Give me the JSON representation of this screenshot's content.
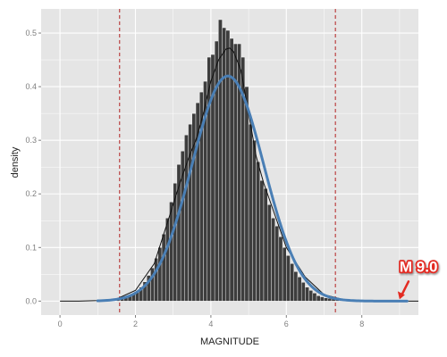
{
  "chart_data": {
    "type": "bar",
    "title": "",
    "xlabel": "MAGNITUDE",
    "ylabel": "density",
    "xlim": [
      -0.5,
      9.5
    ],
    "ylim": [
      -0.026,
      0.545
    ],
    "x_ticks": [
      0,
      2,
      4,
      6,
      8
    ],
    "y_ticks": [
      0.0,
      0.1,
      0.2,
      0.3,
      0.4,
      0.5
    ],
    "x_tick_labels": [
      "0",
      "2",
      "4",
      "6",
      "8"
    ],
    "y_tick_labels": [
      "0.0",
      "0.1",
      "0.2",
      "0.3",
      "0.4",
      "0.5"
    ],
    "grid": true,
    "legend": "none",
    "histogram": {
      "bin_width": 0.1,
      "bin_starts": [
        1.5,
        1.6,
        1.7,
        1.8,
        1.9,
        2.0,
        2.1,
        2.2,
        2.3,
        2.4,
        2.5,
        2.6,
        2.7,
        2.8,
        2.9,
        3.0,
        3.1,
        3.2,
        3.3,
        3.4,
        3.5,
        3.6,
        3.7,
        3.8,
        3.9,
        4.0,
        4.1,
        4.2,
        4.3,
        4.4,
        4.5,
        4.6,
        4.7,
        4.8,
        4.9,
        5.0,
        5.1,
        5.2,
        5.3,
        5.4,
        5.5,
        5.6,
        5.7,
        5.8,
        5.9,
        6.0,
        6.1,
        6.2,
        6.3,
        6.4,
        6.5,
        6.6,
        6.7,
        6.8,
        6.9,
        7.0,
        7.1,
        7.2,
        7.3,
        7.4,
        7.5,
        7.6,
        7.7,
        7.8,
        7.9,
        8.0,
        8.1,
        8.2,
        8.3
      ],
      "densities": [
        0.002,
        0.004,
        0.006,
        0.01,
        0.014,
        0.018,
        0.026,
        0.036,
        0.048,
        0.062,
        0.08,
        0.1,
        0.125,
        0.155,
        0.185,
        0.22,
        0.255,
        0.28,
        0.31,
        0.33,
        0.35,
        0.37,
        0.39,
        0.41,
        0.455,
        0.46,
        0.485,
        0.525,
        0.51,
        0.505,
        0.49,
        0.48,
        0.48,
        0.455,
        0.4,
        0.33,
        0.3,
        0.26,
        0.225,
        0.21,
        0.18,
        0.155,
        0.14,
        0.12,
        0.1,
        0.085,
        0.07,
        0.055,
        0.045,
        0.035,
        0.026,
        0.02,
        0.015,
        0.01,
        0.008,
        0.006,
        0.005,
        0.004,
        0.003,
        0.002,
        0.002,
        0.001,
        0.001,
        0.001,
        0.001,
        0.001,
        0.0005,
        0.0005,
        0.0005
      ],
      "color": "#3d3d3d",
      "edge_color": "#ffffff"
    },
    "kernel_density": {
      "x": [
        0.0,
        0.5,
        1.0,
        1.5,
        2.0,
        2.5,
        3.0,
        3.2,
        3.4,
        3.6,
        3.8,
        4.0,
        4.2,
        4.4,
        4.5,
        4.6,
        4.8,
        5.0,
        5.2,
        5.4,
        5.6,
        5.8,
        6.0,
        6.5,
        7.0,
        7.5,
        8.0,
        8.5,
        9.0,
        9.5
      ],
      "y": [
        0.0,
        0.0,
        0.001,
        0.004,
        0.02,
        0.07,
        0.18,
        0.225,
        0.265,
        0.3,
        0.35,
        0.41,
        0.45,
        0.47,
        0.472,
        0.465,
        0.43,
        0.35,
        0.27,
        0.22,
        0.18,
        0.14,
        0.1,
        0.045,
        0.012,
        0.003,
        0.001,
        0.0,
        0.0,
        0.0
      ],
      "color": "#111111"
    },
    "normal_fit": {
      "mean": 4.45,
      "sd": 0.95,
      "x_range": [
        1.0,
        9.2
      ],
      "color": "#4a7fb5"
    },
    "vlines": {
      "x": [
        1.58,
        7.3
      ],
      "color": "#b22222",
      "style": "dashed"
    },
    "annotation": {
      "text": "M 9.0",
      "x": 9.0,
      "y": 0.0,
      "color": "#e32b22"
    }
  }
}
